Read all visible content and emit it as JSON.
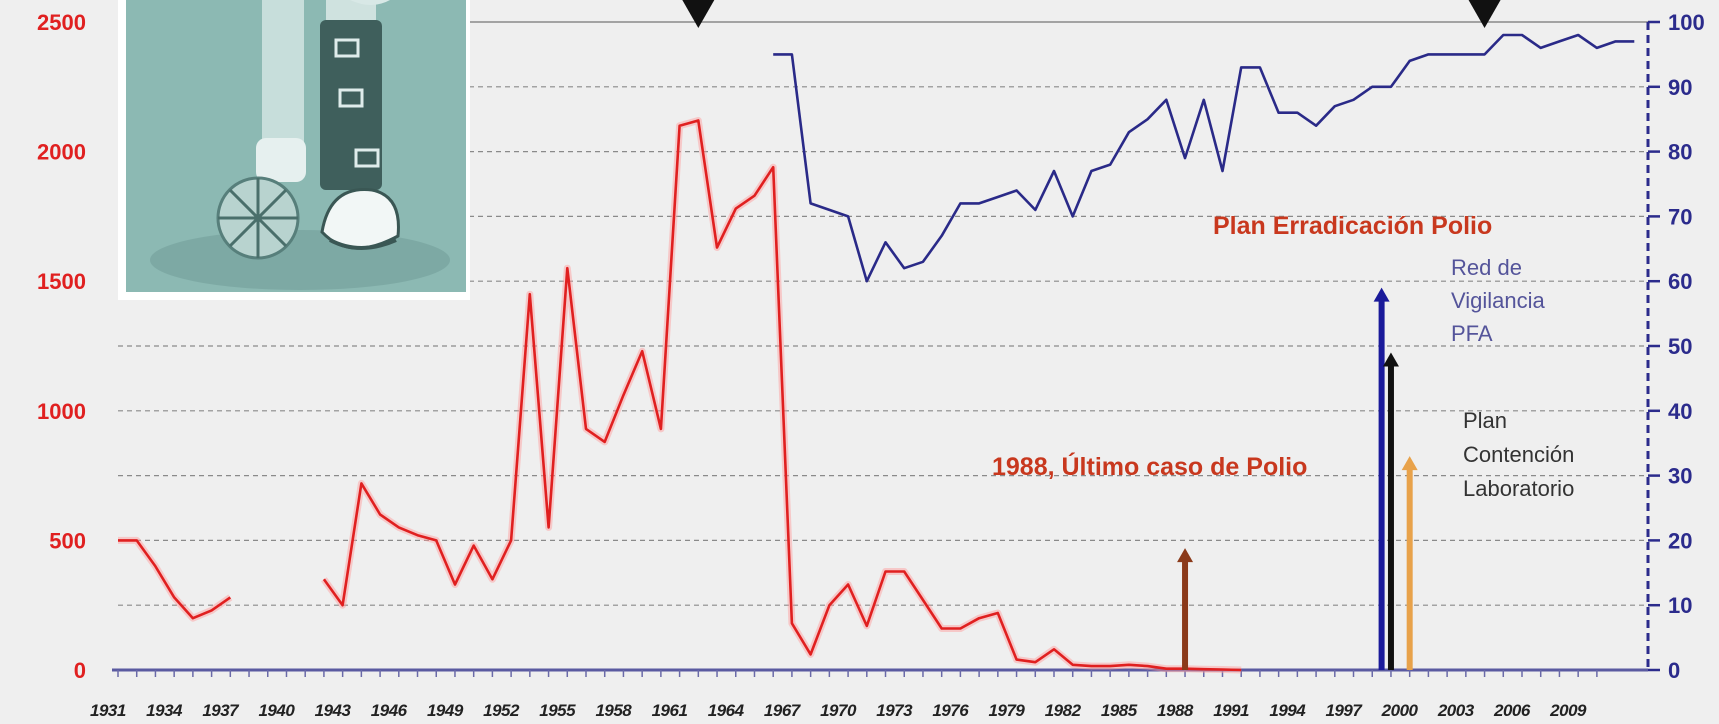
{
  "chart_data": {
    "type": "line",
    "title": "",
    "x_range": [
      1931,
      2010
    ],
    "x_tick_labels": [
      "1931",
      "1934",
      "1937",
      "1940",
      "1943",
      "1946",
      "1949",
      "1952",
      "1955",
      "1958",
      "1961",
      "1964",
      "1967",
      "1970",
      "1973",
      "1976",
      "1979",
      "1982",
      "1985",
      "1988",
      "1991",
      "1994",
      "1997",
      "2000",
      "2003",
      "2006",
      "2009"
    ],
    "y_left": {
      "ylim": [
        0,
        2500
      ],
      "ticks": [
        "0",
        "500",
        "1000",
        "1500",
        "2000",
        "2500"
      ],
      "color": "#e02020"
    },
    "y_right": {
      "ylim": [
        0,
        100
      ],
      "ticks": [
        "0",
        "10",
        "20",
        "30",
        "40",
        "50",
        "60",
        "70",
        "80",
        "90",
        "100"
      ],
      "color": "#2b2b8c"
    },
    "grid": true,
    "series": [
      {
        "axis": "left",
        "color": "#e02020",
        "segments": [
          [
            [
              1931,
              500
            ],
            [
              1932,
              500
            ],
            [
              1933,
              400
            ],
            [
              1934,
              280
            ],
            [
              1935,
              200
            ],
            [
              1936,
              230
            ],
            [
              1937,
              280
            ]
          ],
          [
            [
              1942,
              350
            ],
            [
              1943,
              250
            ],
            [
              1944,
              720
            ],
            [
              1945,
              600
            ],
            [
              1946,
              550
            ],
            [
              1947,
              520
            ],
            [
              1948,
              500
            ],
            [
              1949,
              330
            ],
            [
              1950,
              480
            ],
            [
              1951,
              350
            ],
            [
              1952,
              500
            ],
            [
              1953,
              1450
            ],
            [
              1954,
              550
            ],
            [
              1955,
              1550
            ],
            [
              1956,
              930
            ],
            [
              1957,
              880
            ],
            [
              1958,
              1060
            ],
            [
              1959,
              1230
            ],
            [
              1960,
              930
            ],
            [
              1961,
              2100
            ],
            [
              1962,
              2120
            ],
            [
              1963,
              1630
            ],
            [
              1964,
              1780
            ],
            [
              1965,
              1830
            ],
            [
              1966,
              1940
            ],
            [
              1967,
              180
            ],
            [
              1968,
              60
            ],
            [
              1969,
              250
            ],
            [
              1970,
              330
            ],
            [
              1971,
              170
            ],
            [
              1972,
              380
            ],
            [
              1973,
              380
            ],
            [
              1974,
              270
            ],
            [
              1975,
              160
            ],
            [
              1976,
              160
            ],
            [
              1977,
              200
            ],
            [
              1978,
              220
            ],
            [
              1979,
              40
            ],
            [
              1980,
              30
            ],
            [
              1981,
              80
            ],
            [
              1982,
              20
            ],
            [
              1983,
              15
            ],
            [
              1984,
              15
            ],
            [
              1985,
              20
            ],
            [
              1986,
              15
            ],
            [
              1987,
              5
            ],
            [
              1988,
              5
            ],
            [
              1989,
              3
            ],
            [
              1990,
              2
            ],
            [
              1991,
              0
            ]
          ]
        ]
      },
      {
        "axis": "right",
        "color": "#2a2a88",
        "segments": [
          [
            [
              1966,
              95
            ],
            [
              1967,
              95
            ],
            [
              1968,
              72
            ],
            [
              1969,
              71
            ],
            [
              1970,
              70
            ],
            [
              1971,
              60
            ],
            [
              1972,
              66
            ],
            [
              1973,
              62
            ],
            [
              1974,
              63
            ],
            [
              1975,
              67
            ],
            [
              1976,
              72
            ],
            [
              1977,
              72
            ],
            [
              1978,
              73
            ],
            [
              1979,
              74
            ],
            [
              1980,
              71
            ],
            [
              1981,
              77
            ],
            [
              1982,
              70
            ],
            [
              1983,
              77
            ],
            [
              1984,
              78
            ],
            [
              1985,
              83
            ],
            [
              1986,
              85
            ],
            [
              1987,
              88
            ],
            [
              1988,
              79
            ],
            [
              1989,
              88
            ],
            [
              1990,
              77
            ],
            [
              1991,
              93
            ],
            [
              1992,
              93
            ],
            [
              1993,
              86
            ],
            [
              1994,
              86
            ],
            [
              1995,
              84
            ],
            [
              1996,
              87
            ],
            [
              1997,
              88
            ],
            [
              1998,
              90
            ],
            [
              1999,
              90
            ],
            [
              2000,
              94
            ],
            [
              2001,
              95
            ],
            [
              2002,
              95
            ],
            [
              2003,
              95
            ],
            [
              2004,
              95
            ],
            [
              2005,
              98
            ],
            [
              2006,
              98
            ],
            [
              2007,
              96
            ],
            [
              2008,
              97
            ],
            [
              2009,
              98
            ],
            [
              2010,
              96
            ],
            [
              2011,
              97
            ],
            [
              2012,
              97
            ]
          ]
        ]
      }
    ],
    "annotations": {
      "plan_erradicacion": "Plan Erradicación Polio",
      "ultimo_caso": "1988, Último caso de Polio",
      "red_vigilancia": [
        "Red de",
        "Vigilancia",
        "PFA"
      ],
      "plan_contencion": [
        "Plan",
        "Contención",
        "Laboratorio"
      ]
    },
    "arrows": [
      {
        "name": "ultimo-caso-arrow",
        "x": 1988,
        "axis": "left",
        "y_top": 470,
        "color": "#8b3a1a"
      },
      {
        "name": "red-vigilancia-arrow",
        "x": 1998.5,
        "axis": "right",
        "y_top": 59,
        "color": "#1a1a9a"
      },
      {
        "name": "pfa-arrow",
        "x": 1999,
        "axis": "right",
        "y_top": 49,
        "color": "#111111"
      },
      {
        "name": "plan-contencion-arrow",
        "x": 2000,
        "axis": "right",
        "y_top": 33,
        "color": "#e8a24a"
      }
    ],
    "markers": [
      {
        "name": "top-marker-1962",
        "x": 1962
      },
      {
        "name": "top-marker-2004",
        "x": 2004
      }
    ]
  },
  "photo": {
    "description_icon": "child-with-leg-brace-photo-icon"
  }
}
